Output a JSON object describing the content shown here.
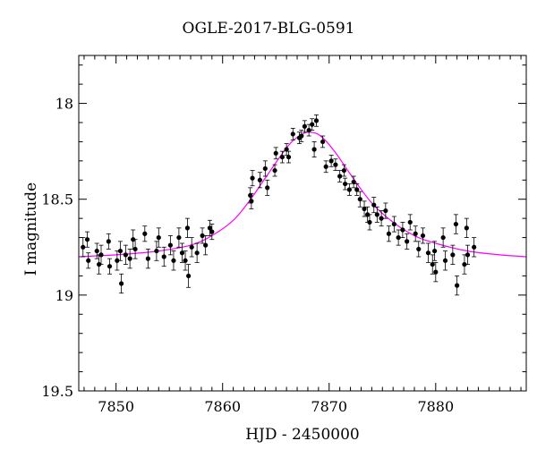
{
  "chart_data": {
    "type": "scatter",
    "title": "OGLE-2017-BLG-0591",
    "xlabel": "HJD - 2450000",
    "ylabel": "I magnitude",
    "xlim": [
      7846.5,
      7888.5
    ],
    "ylim": [
      19.5,
      17.75
    ],
    "y_inverted": true,
    "x_ticks": [
      7850,
      7860,
      7870,
      7880
    ],
    "y_ticks": [
      18,
      18.5,
      19,
      19.5
    ],
    "grid": false,
    "colors": {
      "points": "#000000",
      "model": "#ff00ff",
      "axes": "#000000"
    },
    "model": {
      "name": "",
      "x": [
        7846.5,
        7850,
        7854,
        7857,
        7859,
        7861,
        7862.5,
        7864,
        7865.5,
        7866.5,
        7867.5,
        7868.2,
        7869.2,
        7870.5,
        7872,
        7874,
        7876,
        7878,
        7880,
        7883,
        7886,
        7888.5
      ],
      "y": [
        18.8,
        18.79,
        18.77,
        18.74,
        18.69,
        18.61,
        18.51,
        18.39,
        18.27,
        18.2,
        18.16,
        18.15,
        18.17,
        18.25,
        18.37,
        18.52,
        18.62,
        18.69,
        18.73,
        18.77,
        18.79,
        18.8
      ]
    },
    "series": [
      {
        "name": "",
        "points": [
          [
            7846.9,
            18.75,
            0.05
          ],
          [
            7847.3,
            18.71,
            0.04
          ],
          [
            7847.4,
            18.82,
            0.04
          ],
          [
            7848.2,
            18.77,
            0.04
          ],
          [
            7848.4,
            18.84,
            0.05
          ],
          [
            7848.6,
            18.79,
            0.05
          ],
          [
            7849.3,
            18.72,
            0.04
          ],
          [
            7849.4,
            18.85,
            0.04
          ],
          [
            7850.1,
            18.82,
            0.05
          ],
          [
            7850.4,
            18.77,
            0.05
          ],
          [
            7850.5,
            18.94,
            0.05
          ],
          [
            7850.9,
            18.79,
            0.05
          ],
          [
            7851.3,
            18.81,
            0.05
          ],
          [
            7851.6,
            18.71,
            0.05
          ],
          [
            7851.8,
            18.76,
            0.05
          ],
          [
            7852.7,
            18.68,
            0.04
          ],
          [
            7853.0,
            18.81,
            0.05
          ],
          [
            7853.8,
            18.77,
            0.05
          ],
          [
            7854.0,
            18.7,
            0.05
          ],
          [
            7854.5,
            18.8,
            0.05
          ],
          [
            7855.1,
            18.74,
            0.05
          ],
          [
            7855.4,
            18.82,
            0.05
          ],
          [
            7855.9,
            18.7,
            0.05
          ],
          [
            7856.2,
            18.78,
            0.05
          ],
          [
            7856.5,
            18.82,
            0.05
          ],
          [
            7856.7,
            18.65,
            0.05
          ],
          [
            7856.8,
            18.9,
            0.06
          ],
          [
            7857.1,
            18.75,
            0.05
          ],
          [
            7857.6,
            18.78,
            0.05
          ],
          [
            7858.1,
            18.69,
            0.04
          ],
          [
            7858.4,
            18.74,
            0.05
          ],
          [
            7858.8,
            18.65,
            0.04
          ],
          [
            7859.0,
            18.67,
            0.04
          ],
          [
            7862.6,
            18.48,
            0.04
          ],
          [
            7862.7,
            18.51,
            0.04
          ],
          [
            7862.8,
            18.39,
            0.04
          ],
          [
            7863.5,
            18.4,
            0.04
          ],
          [
            7864.0,
            18.34,
            0.04
          ],
          [
            7864.2,
            18.44,
            0.04
          ],
          [
            7864.9,
            18.35,
            0.03
          ],
          [
            7865.0,
            18.26,
            0.03
          ],
          [
            7865.6,
            18.28,
            0.03
          ],
          [
            7866.0,
            18.24,
            0.03
          ],
          [
            7866.2,
            18.28,
            0.03
          ],
          [
            7866.6,
            18.16,
            0.03
          ],
          [
            7867.2,
            18.18,
            0.03
          ],
          [
            7867.4,
            18.17,
            0.03
          ],
          [
            7867.7,
            18.12,
            0.03
          ],
          [
            7868.1,
            18.14,
            0.03
          ],
          [
            7868.4,
            18.11,
            0.03
          ],
          [
            7868.6,
            18.24,
            0.04
          ],
          [
            7868.8,
            18.09,
            0.03
          ],
          [
            7869.4,
            18.2,
            0.03
          ],
          [
            7869.7,
            18.33,
            0.03
          ],
          [
            7870.2,
            18.3,
            0.03
          ],
          [
            7870.6,
            18.32,
            0.03
          ],
          [
            7871.0,
            18.38,
            0.03
          ],
          [
            7871.4,
            18.35,
            0.03
          ],
          [
            7871.5,
            18.42,
            0.03
          ],
          [
            7871.9,
            18.45,
            0.03
          ],
          [
            7872.3,
            18.41,
            0.03
          ],
          [
            7872.6,
            18.45,
            0.03
          ],
          [
            7872.9,
            18.5,
            0.04
          ],
          [
            7873.3,
            18.55,
            0.04
          ],
          [
            7873.6,
            18.58,
            0.04
          ],
          [
            7873.8,
            18.62,
            0.04
          ],
          [
            7874.2,
            18.53,
            0.04
          ],
          [
            7874.5,
            18.58,
            0.04
          ],
          [
            7874.9,
            18.6,
            0.04
          ],
          [
            7875.3,
            18.56,
            0.04
          ],
          [
            7875.6,
            18.68,
            0.04
          ],
          [
            7876.1,
            18.63,
            0.04
          ],
          [
            7876.5,
            18.7,
            0.04
          ],
          [
            7876.9,
            18.66,
            0.04
          ],
          [
            7877.3,
            18.72,
            0.04
          ],
          [
            7877.6,
            18.62,
            0.04
          ],
          [
            7878.1,
            18.68,
            0.04
          ],
          [
            7878.4,
            18.76,
            0.04
          ],
          [
            7878.8,
            18.69,
            0.04
          ],
          [
            7879.3,
            18.78,
            0.05
          ],
          [
            7879.7,
            18.84,
            0.05
          ],
          [
            7879.9,
            18.77,
            0.05
          ],
          [
            7880.0,
            18.88,
            0.05
          ],
          [
            7880.7,
            18.7,
            0.05
          ],
          [
            7880.9,
            18.82,
            0.05
          ],
          [
            7881.6,
            18.79,
            0.05
          ],
          [
            7881.9,
            18.63,
            0.05
          ],
          [
            7882.0,
            18.95,
            0.05
          ],
          [
            7882.7,
            18.84,
            0.05
          ],
          [
            7882.9,
            18.65,
            0.05
          ],
          [
            7883.0,
            18.79,
            0.05
          ],
          [
            7883.6,
            18.75,
            0.05
          ]
        ]
      }
    ]
  }
}
